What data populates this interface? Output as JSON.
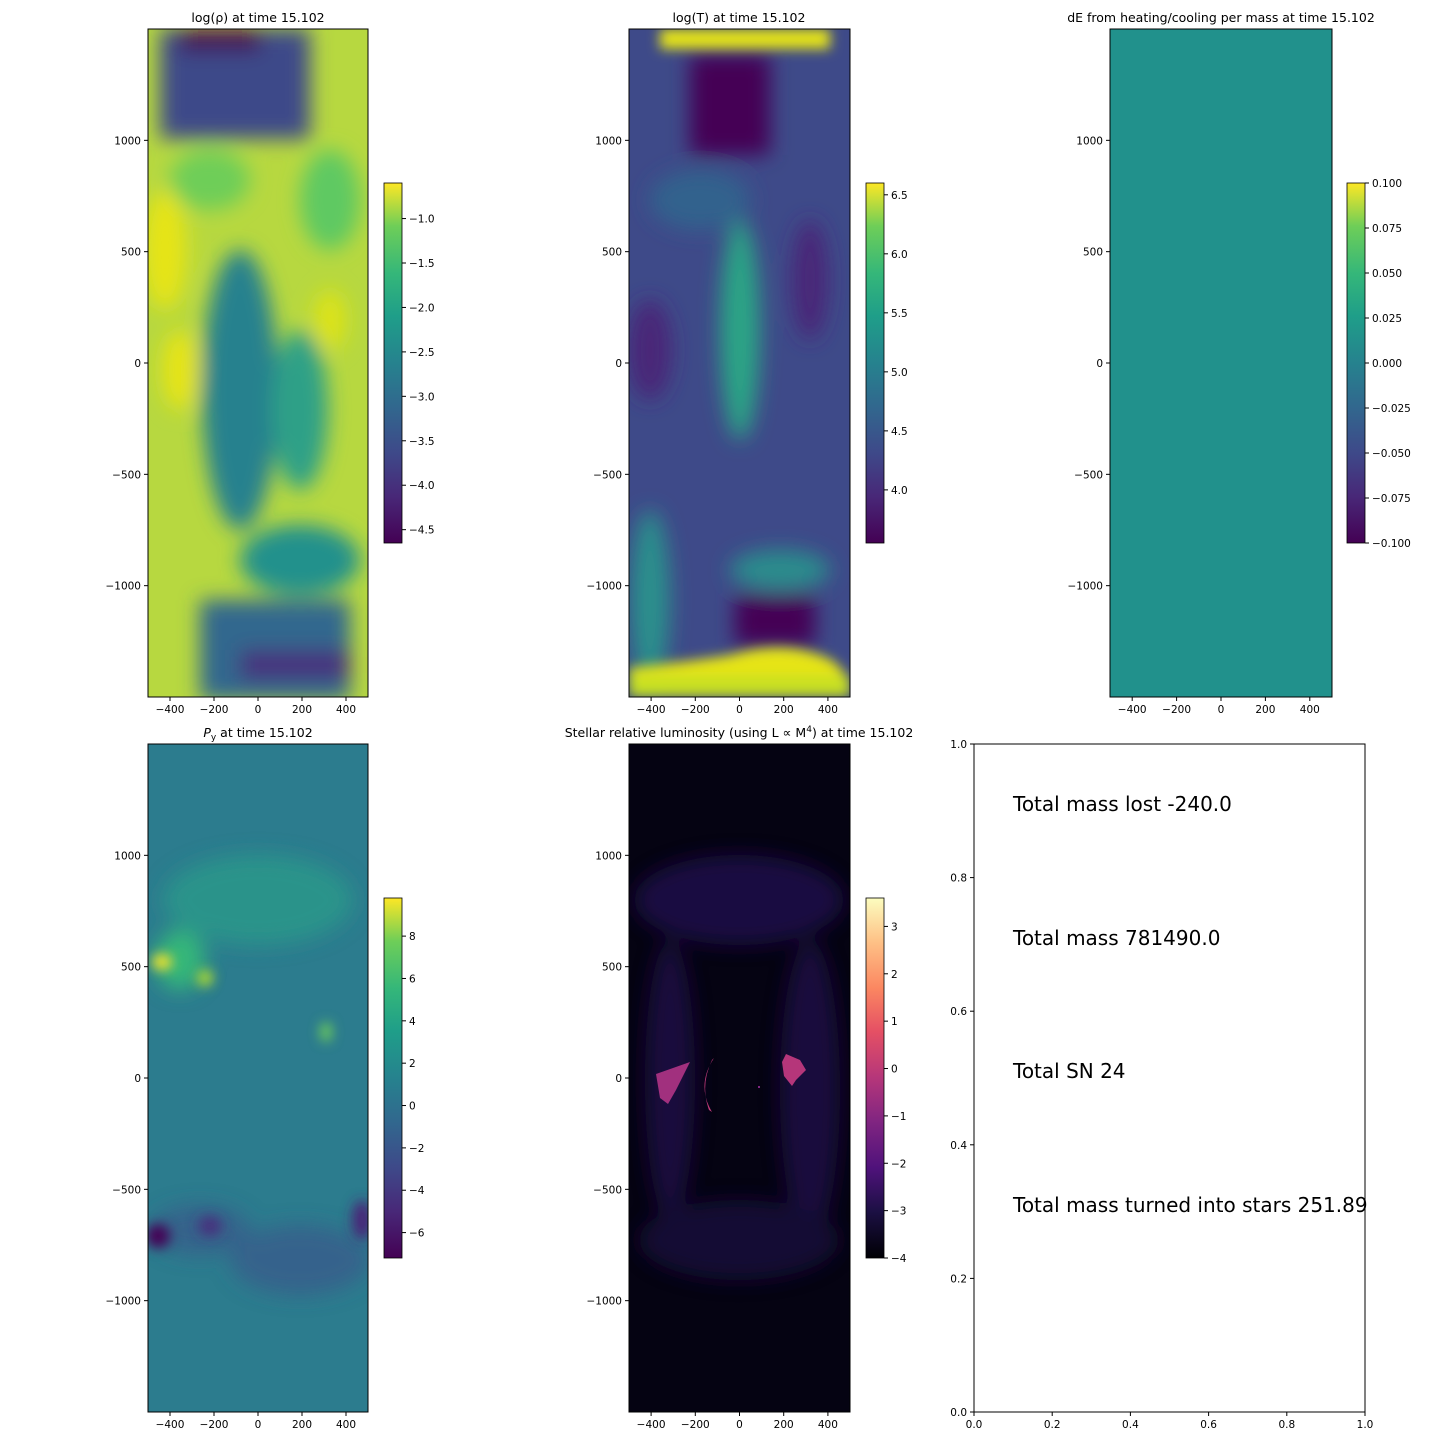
{
  "figure": {
    "panels": [
      {
        "id": "p1",
        "title": "log(ρ) at time 15.102",
        "cmap": "viridis",
        "base_color": "#b7d840",
        "colorbar": {
          "ticks": [
            "−1.0",
            "−1.5",
            "−2.0",
            "−2.5",
            "−3.0",
            "−3.5",
            "−4.0",
            "−4.5"
          ],
          "tick_values": [
            -1.0,
            -1.5,
            -2.0,
            -2.5,
            -3.0,
            -3.5,
            -4.0,
            -4.5
          ],
          "range": [
            -4.65,
            -0.6
          ]
        },
        "xticks": [
          "−400",
          "−200",
          "0",
          "200",
          "400"
        ],
        "yticks": [
          "1000",
          "500",
          "0",
          "−500",
          "−1000"
        ]
      },
      {
        "id": "p2",
        "title": "log(T) at time 15.102",
        "cmap": "viridis",
        "base_color": "#3e4a89",
        "colorbar": {
          "ticks": [
            "6.5",
            "6.0",
            "5.5",
            "5.0",
            "4.5",
            "4.0"
          ],
          "tick_values": [
            6.5,
            6.0,
            5.5,
            5.0,
            4.5,
            4.0
          ],
          "range": [
            3.55,
            6.6
          ]
        },
        "xticks": [
          "−400",
          "−200",
          "0",
          "200",
          "400"
        ],
        "yticks": [
          "1000",
          "500",
          "0",
          "−500",
          "−1000"
        ]
      },
      {
        "id": "p3",
        "title": "dE from heating/cooling per mass at time 15.102",
        "cmap": "viridis",
        "base_color": "#21918c",
        "colorbar": {
          "ticks": [
            "0.100",
            "0.075",
            "0.050",
            "0.025",
            "0.000",
            "−0.025",
            "−0.050",
            "−0.075",
            "−0.100"
          ],
          "tick_values": [
            0.1,
            0.075,
            0.05,
            0.025,
            0.0,
            -0.025,
            -0.05,
            -0.075,
            -0.1
          ],
          "range": [
            -0.1,
            0.1
          ]
        },
        "xticks": [
          "−400",
          "−200",
          "0",
          "200",
          "400"
        ],
        "yticks": [
          "1000",
          "500",
          "0",
          "−500",
          "−1000"
        ]
      },
      {
        "id": "p4",
        "title": "P",
        "title_sub": "y",
        "title_rest": " at time 15.102",
        "cmap": "viridis",
        "base_color": "#2c7c8e",
        "colorbar": {
          "ticks": [
            "8",
            "6",
            "4",
            "2",
            "0",
            "−2",
            "−4",
            "−6"
          ],
          "tick_values": [
            8,
            6,
            4,
            2,
            0,
            -2,
            -4,
            -6
          ],
          "range": [
            -7.2,
            9.8
          ]
        },
        "xticks": [
          "−400",
          "−200",
          "0",
          "200",
          "400"
        ],
        "yticks": [
          "1000",
          "500",
          "0",
          "−500",
          "−1000"
        ]
      },
      {
        "id": "p5",
        "title": "Stellar relative luminosity (using L ∝ M",
        "title_sup": "4",
        "title_rest": ") at time 15.102",
        "cmap": "magma",
        "base_color": "#050312",
        "colorbar": {
          "ticks": [
            "3",
            "2",
            "1",
            "0",
            "−1",
            "−2",
            "−3",
            "−4"
          ],
          "tick_values": [
            3,
            2,
            1,
            0,
            -1,
            -2,
            -3,
            -4
          ],
          "range": [
            -4.0,
            3.6
          ]
        },
        "xticks": [
          "−400",
          "−200",
          "0",
          "200",
          "400"
        ],
        "yticks": [
          "1000",
          "500",
          "0",
          "−500",
          "−1000"
        ]
      }
    ],
    "text_panel": {
      "xticks": [
        "0.0",
        "0.2",
        "0.4",
        "0.6",
        "0.8",
        "1.0"
      ],
      "yticks": [
        "1.0",
        "0.8",
        "0.6",
        "0.4",
        "0.2",
        "0.0"
      ],
      "lines": [
        "Total mass lost -240.0",
        "Total mass 781490.0",
        "Total SN 24",
        "Total mass turned into stars 251.89"
      ]
    }
  },
  "chart_data": {
    "type": "heatmap",
    "title": "log(ρ), log(T), dE from heating/cooling, P_y, stellar relative luminosity at time 15.102",
    "x_range": [
      -500,
      500
    ],
    "y_range": [
      -1500,
      1500
    ],
    "time": 15.102,
    "panels": [
      {
        "title": "log(ρ) at time 15.102",
        "colorbar_range": [
          -4.65,
          -0.6
        ]
      },
      {
        "title": "log(T) at time 15.102",
        "colorbar_range": [
          3.55,
          6.6
        ]
      },
      {
        "title": "dE from heating/cooling per mass at time 15.102",
        "colorbar_range": [
          -0.1,
          0.1
        ],
        "uniform_value": 0.0
      },
      {
        "title": "P_y at time 15.102",
        "colorbar_range": [
          -7.2,
          9.8
        ]
      },
      {
        "title": "Stellar relative luminosity (using L ∝ M^4) at time 15.102",
        "colorbar_range": [
          -4.0,
          3.6
        ]
      }
    ],
    "annotations": {
      "total_mass_lost": -240.0,
      "total_mass": 781490.0,
      "total_SN": 24,
      "total_mass_turned_into_stars": 251.89
    }
  }
}
